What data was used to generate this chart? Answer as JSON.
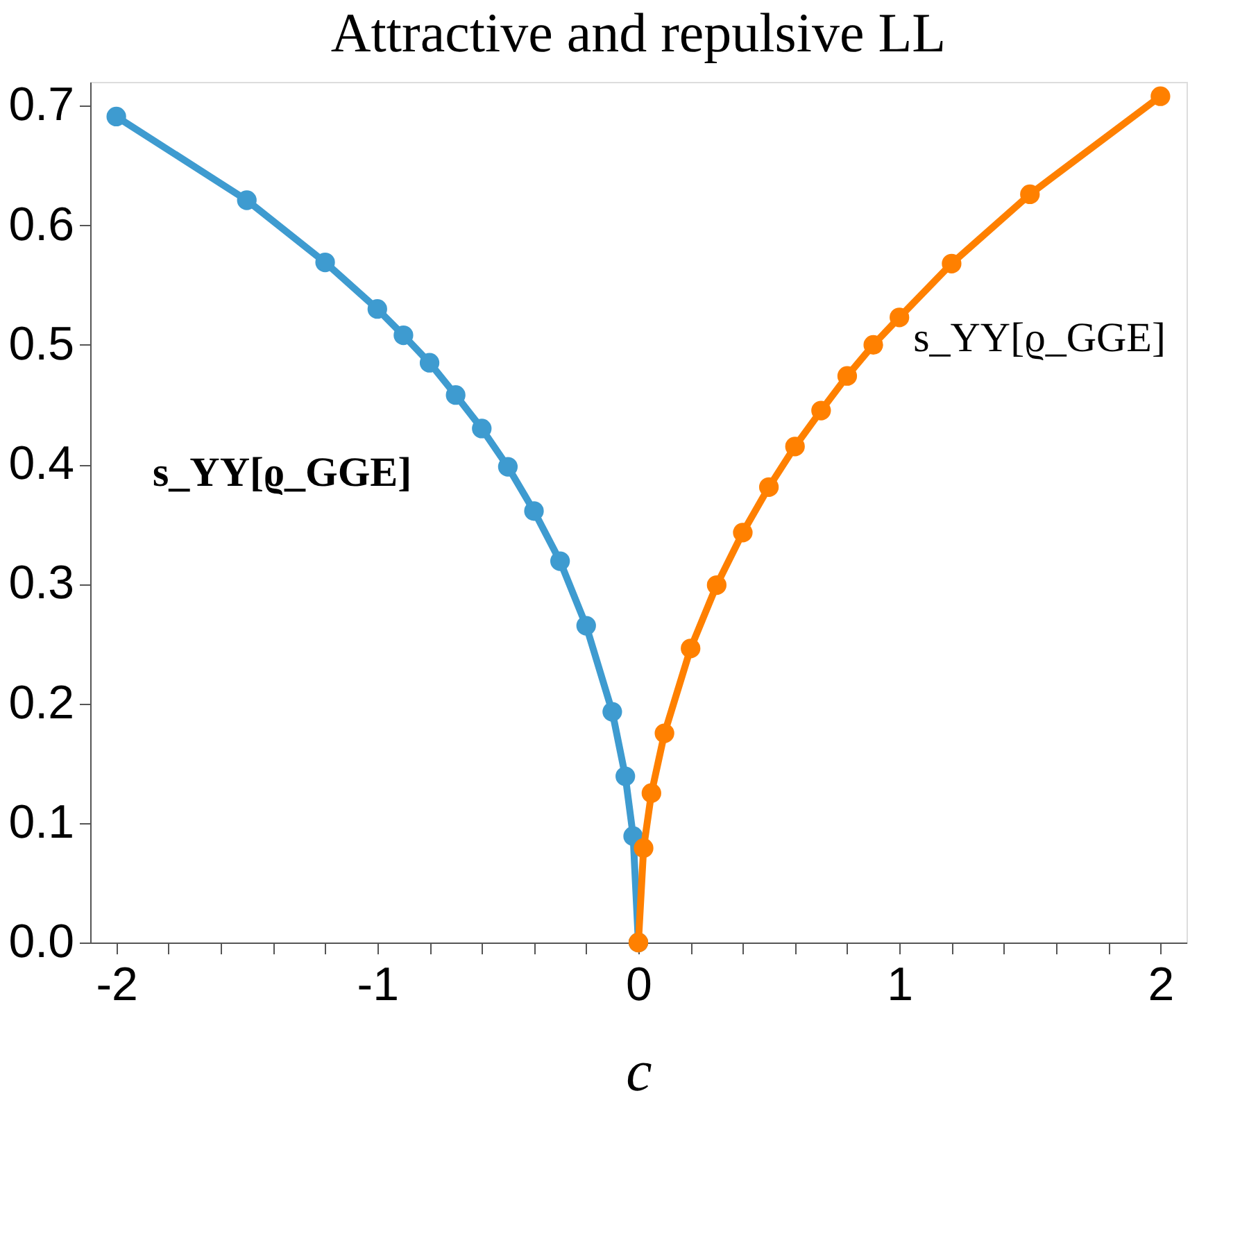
{
  "chart_data": {
    "type": "line",
    "title": "Attractive and repulsive LL",
    "xlabel": "c",
    "series": [
      {
        "color": "#3e9bd0",
        "x": [
          -2,
          -1.5,
          -1.2,
          -1,
          -0.9,
          -0.8,
          -0.7,
          -0.6,
          -0.5,
          -0.4,
          -0.3,
          -0.2,
          -0.1,
          -0.05,
          -0.02,
          0
        ],
        "values": [
          0.691,
          0.621,
          0.569,
          0.53,
          0.508,
          0.485,
          0.458,
          0.43,
          0.398,
          0.361,
          0.319,
          0.265,
          0.193,
          0.139,
          0.089,
          0
        ]
      },
      {
        "color": "#ff8000",
        "x": [
          0,
          0.02,
          0.05,
          0.1,
          0.2,
          0.3,
          0.4,
          0.5,
          0.6,
          0.7,
          0.8,
          0.9,
          1,
          1.2,
          1.5,
          2
        ],
        "values": [
          0,
          0.079,
          0.125,
          0.175,
          0.246,
          0.299,
          0.343,
          0.381,
          0.415,
          0.445,
          0.474,
          0.5,
          0.523,
          0.568,
          0.626,
          0.708
        ]
      }
    ],
    "annotations": [
      "s_YY[ϱ_GGE]",
      "s_YY[ϱ_GGE]"
    ],
    "xlim": [
      -2.1,
      2.1
    ],
    "xticks": [
      -2,
      {
        "value": -1.8,
        "label": null
      },
      {
        "value": -1.6,
        "label": null
      },
      {
        "value": -1.4,
        "label": null
      },
      {
        "value": -1.2,
        "label": null
      },
      -1,
      {
        "value": -0.8,
        "label": null
      },
      {
        "value": -0.6,
        "label": null
      },
      {
        "value": -0.4,
        "label": null
      },
      {
        "value": -0.2,
        "label": null
      },
      0,
      {
        "value": 0.2,
        "label": null
      },
      {
        "value": 0.4,
        "label": null
      },
      {
        "value": 0.6,
        "label": null
      },
      {
        "value": 0.8,
        "label": null
      },
      1,
      {
        "value": 1.2,
        "label": null
      },
      {
        "value": 1.4,
        "label": null
      },
      {
        "value": 1.6,
        "label": null
      },
      {
        "value": 1.8,
        "label": null
      },
      2
    ],
    "ylim": [
      0,
      0.72
    ],
    "yticks": [
      {
        "value": 0,
        "label": "0.0"
      },
      0.1,
      0.2,
      0.3,
      0.4,
      0.5,
      0.6,
      0.7
    ],
    "grid": false,
    "marker": "circle",
    "line_style": "solid"
  }
}
